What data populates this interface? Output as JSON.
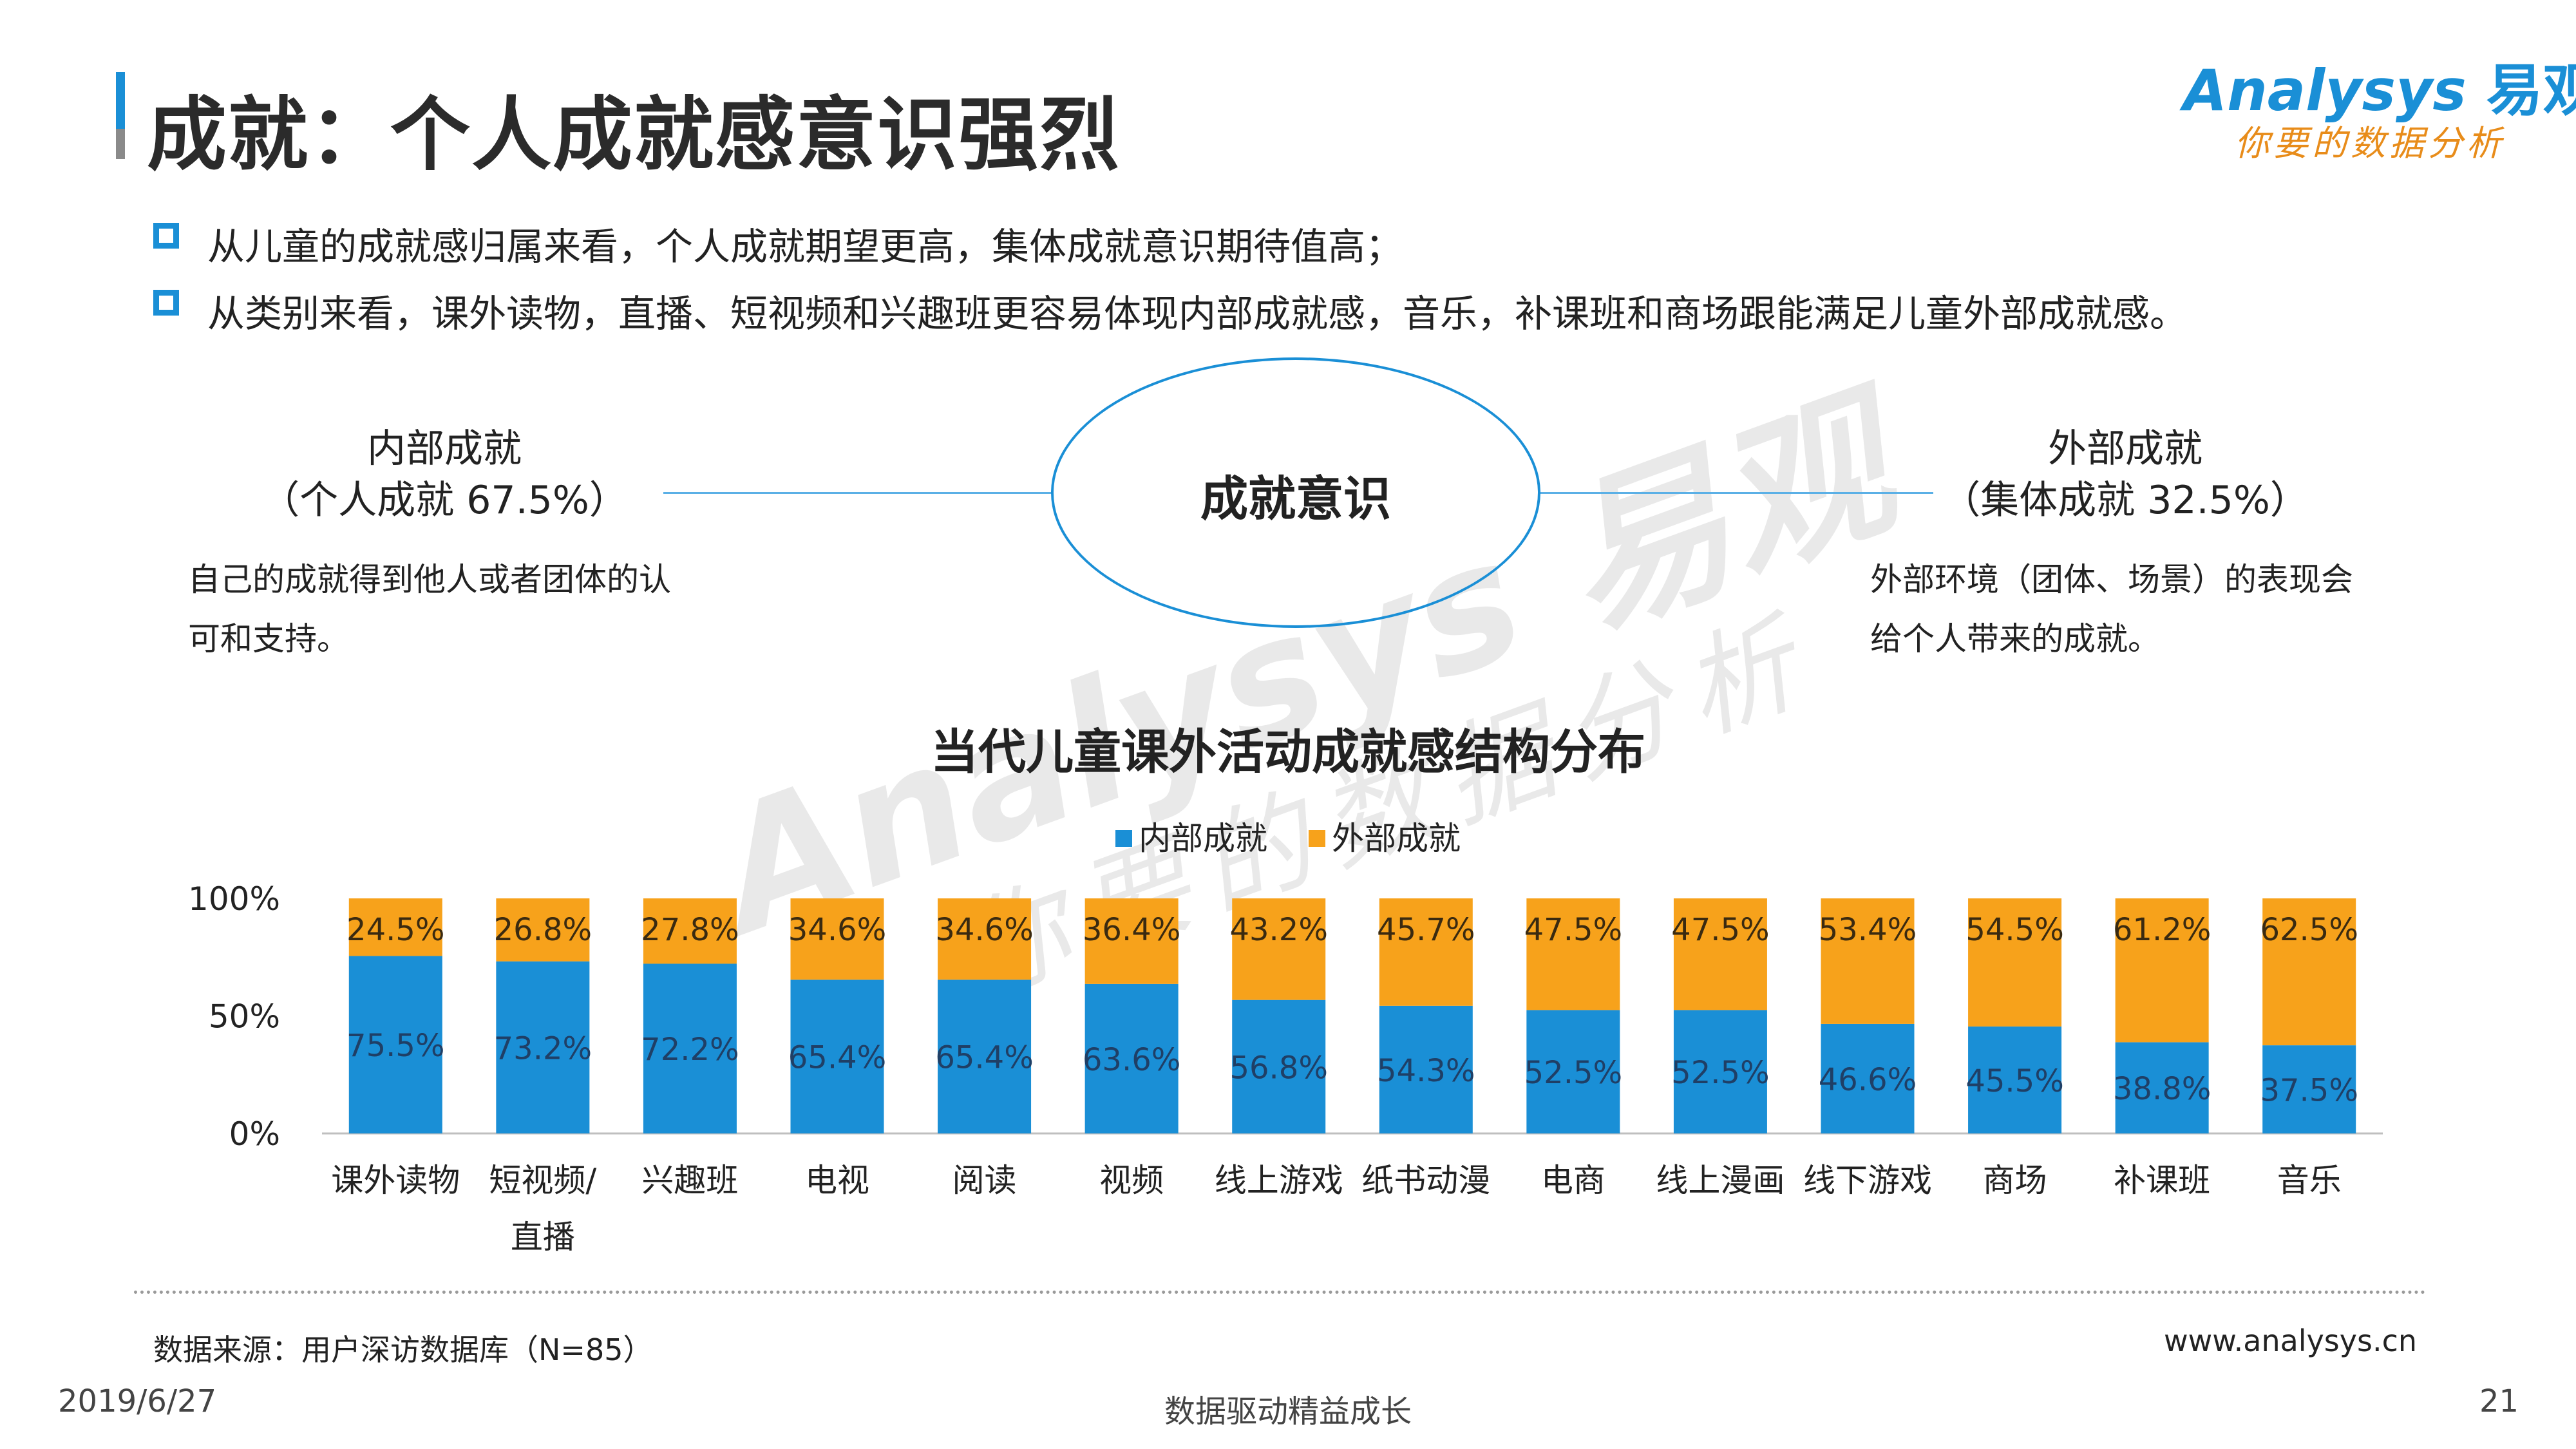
{
  "title": "成就：个人成就感意识强烈",
  "logo": {
    "brand": "Analysys",
    "brand_cn": "易观",
    "tagline": "你要的数据分析"
  },
  "bullets": [
    "从儿童的成就感归属来看，个人成就期望更高，集体成就意识期待值高；",
    "从类别来看，课外读物，直播、短视频和兴趣班更容易体现内部成就感，音乐，补课班和商场跟能满足儿童外部成就感。"
  ],
  "diagram": {
    "center": "成就意识",
    "left": {
      "title": "内部成就",
      "subtitle": "（个人成就 67.5%）",
      "desc_line1": "自己的成就得到他人或者团体的认",
      "desc_line2": "可和支持。"
    },
    "right": {
      "title": "外部成就",
      "subtitle": "（集体成就 32.5%）",
      "desc_line1": "外部环境（团体、场景）的表现会",
      "desc_line2": "给个人带来的成就。"
    }
  },
  "chart_data": {
    "type": "bar",
    "stacked": true,
    "title": "当代儿童课外活动成就感结构分布",
    "categories": [
      "课外读物",
      "短视频/直播",
      "兴趣班",
      "电视",
      "阅读",
      "视频",
      "线上游戏",
      "纸书动漫",
      "电商",
      "线上漫画",
      "线下游戏",
      "商场",
      "补课班",
      "音乐"
    ],
    "category_lines": [
      [
        "课外读物"
      ],
      [
        "短视频/",
        "直播"
      ],
      [
        "兴趣班"
      ],
      [
        "电视"
      ],
      [
        "阅读"
      ],
      [
        "视频"
      ],
      [
        "线上游戏"
      ],
      [
        "纸书动漫"
      ],
      [
        "电商"
      ],
      [
        "线上漫画"
      ],
      [
        "线下游戏"
      ],
      [
        "商场"
      ],
      [
        "补课班"
      ],
      [
        "音乐"
      ]
    ],
    "series": [
      {
        "name": "内部成就",
        "color": "#1a8fd6",
        "values": [
          75.5,
          73.2,
          72.2,
          65.4,
          65.4,
          63.6,
          56.8,
          54.3,
          52.5,
          52.5,
          46.6,
          45.5,
          38.8,
          37.5
        ]
      },
      {
        "name": "外部成就",
        "color": "#f7a21b",
        "values": [
          24.5,
          26.8,
          27.8,
          34.6,
          34.6,
          36.4,
          43.2,
          45.7,
          47.5,
          47.5,
          53.4,
          54.5,
          61.2,
          62.5
        ]
      }
    ],
    "y_ticks": [
      "0%",
      "50%",
      "100%"
    ],
    "ylim": [
      0,
      100
    ],
    "legend_position": "top-center",
    "grid": false
  },
  "footer": {
    "source": "数据来源：用户深访数据库（N=85）",
    "url": "www.analysys.cn",
    "date": "2019/6/27",
    "slogan": "数据驱动精益成长",
    "page": "21"
  }
}
